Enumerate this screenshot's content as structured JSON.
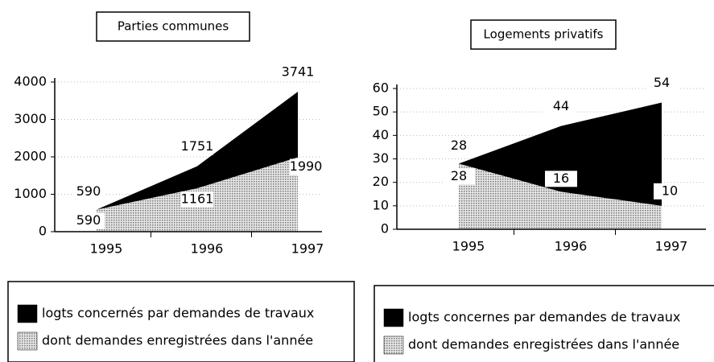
{
  "chart_data": [
    {
      "type": "area",
      "title": "Parties communes",
      "categories": [
        "1995",
        "1996",
        "1997"
      ],
      "series": [
        {
          "name": "logts concernés par demandes de travaux",
          "color": "#000000",
          "values": [
            590,
            1751,
            3741
          ]
        },
        {
          "name": "dont demandes enregistrées dans l'année",
          "color": "#c4c4c4",
          "values": [
            590,
            1161,
            1990
          ]
        }
      ],
      "ylim": [
        0,
        4000
      ],
      "yticks": [
        0,
        1000,
        2000,
        3000,
        4000
      ],
      "grid": true
    },
    {
      "type": "area",
      "title": "Logements privatifs",
      "categories": [
        "1995",
        "1996",
        "1997"
      ],
      "series": [
        {
          "name": "logts concernes par demandes de travaux",
          "color": "#000000",
          "values": [
            28,
            44,
            54
          ]
        },
        {
          "name": "dont demandes enregistrées dans l'année",
          "color": "#c4c4c4",
          "values": [
            28,
            16,
            10
          ]
        }
      ],
      "ylim": [
        0,
        60
      ],
      "yticks": [
        0,
        10,
        20,
        30,
        40,
        50,
        60
      ],
      "grid": true
    }
  ]
}
